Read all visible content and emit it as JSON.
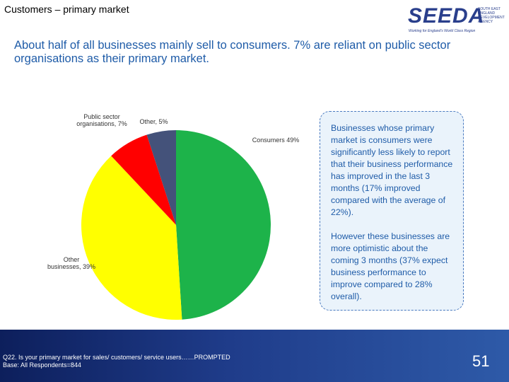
{
  "header": {
    "title": "Customers – primary market",
    "subtitle": "About half of all businesses mainly sell to consumers. 7% are reliant on public sector organisations as their primary market."
  },
  "logo": {
    "name": "SEEDA",
    "agency": "SOUTH EAST ENGLAND DEVELOPMENT AGENCY",
    "tagline": "Working for England's World Class Region"
  },
  "chart_data": {
    "type": "pie",
    "categories": [
      "Consumers",
      "Other businesses,",
      "Public sector organisations,",
      "Other,"
    ],
    "values": [
      49,
      39,
      7,
      5
    ],
    "value_labels": [
      "49%",
      "39%",
      "7%",
      "5%"
    ],
    "colors": [
      "#1db34a",
      "#ffff00",
      "#ff0000",
      "#44527a"
    ]
  },
  "callout": {
    "paragraphs": [
      "Businesses whose primary market is consumers were significantly less likely to report that their business performance has improved in the last 3 months (17% improved compared with the average of 22%).",
      "However these businesses are more optimistic about the coming 3 months (37% expect business performance to improve compared to 28% overall)."
    ]
  },
  "footnote": {
    "lines": [
      "Q22. Is your primary market for sales/ customers/ service users……PROMPTED",
      "Base: All Respondents=844"
    ]
  },
  "page_number": "51"
}
